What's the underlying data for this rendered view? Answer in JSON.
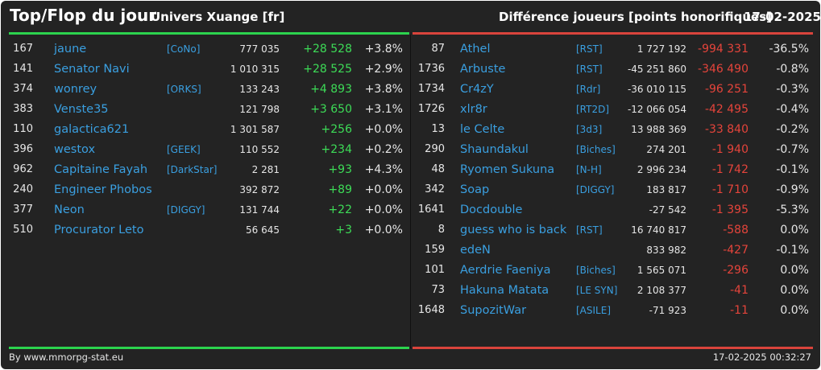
{
  "header": {
    "title": "Top/Flop du jour",
    "universe": "Univers Xuange [fr]",
    "metric": "Différence joueurs [points honorifiques]",
    "date": "17-02-2025"
  },
  "colors": {
    "background": "#232323",
    "top_accent": "#2cd34e",
    "flop_accent": "#d9443c",
    "link": "#3a9fe0",
    "positive": "#3ddc57",
    "negative": "#e5443b"
  },
  "top": [
    {
      "rank": "167",
      "name": "jaune",
      "alliance": "[CoNo]",
      "total": "777 035",
      "diff": "+28 528",
      "pct": "+3.8%"
    },
    {
      "rank": "141",
      "name": "Senator Navi",
      "alliance": "",
      "total": "1 010 315",
      "diff": "+28 525",
      "pct": "+2.9%"
    },
    {
      "rank": "374",
      "name": "wonrey",
      "alliance": "[ORKS]",
      "total": "133 243",
      "diff": "+4 893",
      "pct": "+3.8%"
    },
    {
      "rank": "383",
      "name": "Venste35",
      "alliance": "",
      "total": "121 798",
      "diff": "+3 650",
      "pct": "+3.1%"
    },
    {
      "rank": "110",
      "name": "galactica621",
      "alliance": "",
      "total": "1 301 587",
      "diff": "+256",
      "pct": "+0.0%"
    },
    {
      "rank": "396",
      "name": "westox",
      "alliance": "[GEEK]",
      "total": "110 552",
      "diff": "+234",
      "pct": "+0.2%"
    },
    {
      "rank": "962",
      "name": "Capitaine Fayah",
      "alliance": "[DarkStar]",
      "total": "2 281",
      "diff": "+93",
      "pct": "+4.3%"
    },
    {
      "rank": "240",
      "name": "Engineer Phobos",
      "alliance": "",
      "total": "392 872",
      "diff": "+89",
      "pct": "+0.0%"
    },
    {
      "rank": "377",
      "name": "Neon",
      "alliance": "[DIGGY]",
      "total": "131 744",
      "diff": "+22",
      "pct": "+0.0%"
    },
    {
      "rank": "510",
      "name": "Procurator Leto",
      "alliance": "",
      "total": "56 645",
      "diff": "+3",
      "pct": "+0.0%"
    }
  ],
  "flop": [
    {
      "rank": "87",
      "name": "Athel",
      "alliance": "[RST]",
      "total": "1 727 192",
      "diff": "-994 331",
      "pct": "-36.5%"
    },
    {
      "rank": "1736",
      "name": "Arbuste",
      "alliance": "[RST]",
      "total": "-45 251 860",
      "diff": "-346 490",
      "pct": "-0.8%"
    },
    {
      "rank": "1734",
      "name": "Cr4zY",
      "alliance": "[Rdr]",
      "total": "-36 010 115",
      "diff": "-96 251",
      "pct": "-0.3%"
    },
    {
      "rank": "1726",
      "name": "xlr8r",
      "alliance": "[RT2D]",
      "total": "-12 066 054",
      "diff": "-42 495",
      "pct": "-0.4%"
    },
    {
      "rank": "13",
      "name": "le Celte",
      "alliance": "[3d3]",
      "total": "13 988 369",
      "diff": "-33 840",
      "pct": "-0.2%"
    },
    {
      "rank": "290",
      "name": "Shaundakul",
      "alliance": "[Biches]",
      "total": "274 201",
      "diff": "-1 940",
      "pct": "-0.7%"
    },
    {
      "rank": "48",
      "name": "Ryomen Sukuna",
      "alliance": "[N-H]",
      "total": "2 996 234",
      "diff": "-1 742",
      "pct": "-0.1%"
    },
    {
      "rank": "342",
      "name": "Soap",
      "alliance": "[DIGGY]",
      "total": "183 817",
      "diff": "-1 710",
      "pct": "-0.9%"
    },
    {
      "rank": "1641",
      "name": "Docdouble",
      "alliance": "",
      "total": "-27 542",
      "diff": "-1 395",
      "pct": "-5.3%"
    },
    {
      "rank": "8",
      "name": "guess who is back",
      "alliance": "[RST]",
      "total": "16 740 817",
      "diff": "-588",
      "pct": "0.0%"
    },
    {
      "rank": "159",
      "name": "edeN",
      "alliance": "",
      "total": "833 982",
      "diff": "-427",
      "pct": "-0.1%"
    },
    {
      "rank": "101",
      "name": "Aerdrie Faeniya",
      "alliance": "[Biches]",
      "total": "1 565 071",
      "diff": "-296",
      "pct": "0.0%"
    },
    {
      "rank": "73",
      "name": "Hakuna Matata",
      "alliance": "[LE SYN]",
      "total": "2 108 377",
      "diff": "-41",
      "pct": "0.0%"
    },
    {
      "rank": "1648",
      "name": "SupozitWar",
      "alliance": "[ASILE]",
      "total": "-71 923",
      "diff": "-11",
      "pct": "0.0%"
    }
  ],
  "footer": {
    "credit": "By www.mmorpg-stat.eu",
    "timestamp": "17-02-2025 00:32:27"
  }
}
